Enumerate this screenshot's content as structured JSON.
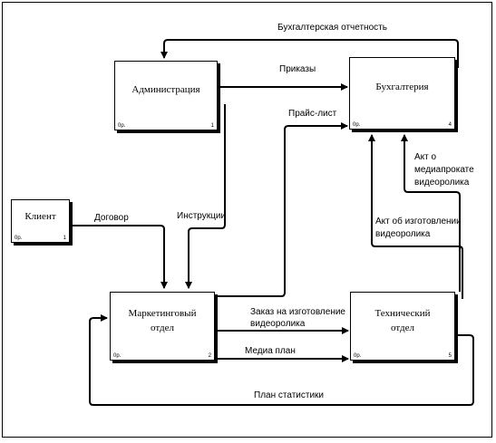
{
  "nodes": {
    "admin": {
      "label": "Администрация",
      "id_text": "0р.",
      "number": "1"
    },
    "accounting": {
      "label": "Бухгалтерия",
      "id_text": "0р.",
      "number": "4"
    },
    "client": {
      "label": "Клиент",
      "id_text": "0р.",
      "number": "1"
    },
    "marketing": {
      "label_line1": "Маркетинговый",
      "label_line2": "отдел",
      "id_text": "0р.",
      "number": "2"
    },
    "technical": {
      "label_line1": "Технический",
      "label_line2": "отдел",
      "id_text": "0р.",
      "number": "5"
    }
  },
  "edges": {
    "accounting_report": "Бухгалтерская отчетность",
    "orders": "Приказы",
    "price_list": "Прайс-лист",
    "contract": "Договор",
    "instructions": "Инструкции",
    "act_rental_line1": "Акт о",
    "act_rental_line2": "медиапрокате",
    "act_rental_line3": "видеоролика",
    "act_production_line1": "Акт об изготовлении",
    "act_production_line2": "видеоролика",
    "production_order_line1": "Заказ на изготовление",
    "production_order_line2": "видеоролика",
    "media_plan": "Медиа план",
    "statistics_plan": "План статистики"
  }
}
